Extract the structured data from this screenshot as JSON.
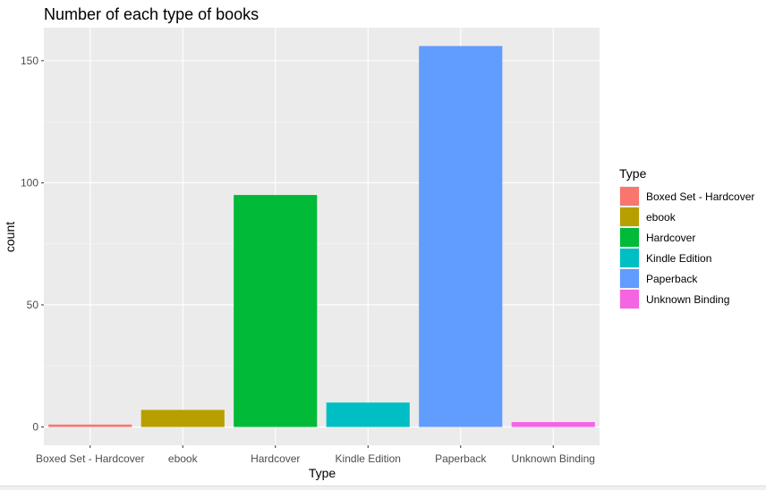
{
  "chart_data": {
    "type": "bar",
    "title": "Number of each type of books",
    "xlabel": "Type",
    "ylabel": "count",
    "categories": [
      "Boxed Set - Hardcover",
      "ebook",
      "Hardcover",
      "Kindle Edition",
      "Paperback",
      "Unknown Binding"
    ],
    "values": [
      1,
      7,
      95,
      10,
      156,
      2
    ],
    "colors": [
      "#F8766D",
      "#B79F00",
      "#00BA38",
      "#00BFC4",
      "#619CFF",
      "#F564E3"
    ],
    "yticks": [
      0,
      50,
      100,
      150
    ],
    "ylim": [
      -7.5,
      163.5
    ],
    "grid": true,
    "legend": {
      "title": "Type",
      "position": "right",
      "entries": [
        "Boxed Set - Hardcover",
        "ebook",
        "Hardcover",
        "Kindle Edition",
        "Paperback",
        "Unknown Binding"
      ]
    }
  }
}
